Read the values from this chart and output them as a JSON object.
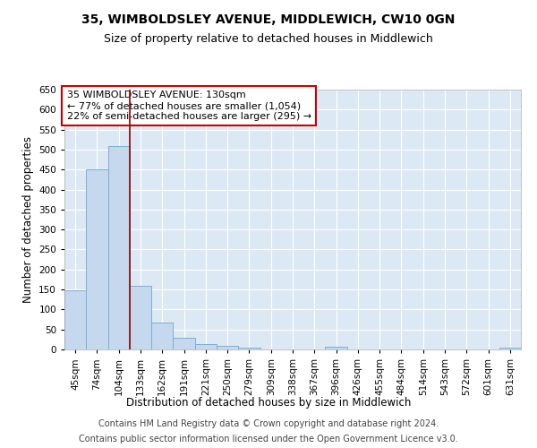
{
  "title": "35, WIMBOLDSLEY AVENUE, MIDDLEWICH, CW10 0GN",
  "subtitle": "Size of property relative to detached houses in Middlewich",
  "xlabel": "Distribution of detached houses by size in Middlewich",
  "ylabel": "Number of detached properties",
  "categories": [
    "45sqm",
    "74sqm",
    "104sqm",
    "133sqm",
    "162sqm",
    "191sqm",
    "221sqm",
    "250sqm",
    "279sqm",
    "309sqm",
    "338sqm",
    "367sqm",
    "396sqm",
    "426sqm",
    "455sqm",
    "484sqm",
    "514sqm",
    "543sqm",
    "572sqm",
    "601sqm",
    "631sqm"
  ],
  "values": [
    148,
    450,
    508,
    160,
    67,
    30,
    13,
    8,
    5,
    0,
    0,
    0,
    6,
    0,
    0,
    0,
    0,
    0,
    0,
    0,
    5
  ],
  "bar_color": "#c5d8ed",
  "bar_edge_color": "#7bafd4",
  "vline_color": "#8b0000",
  "annotation_text": "35 WIMBOLDSLEY AVENUE: 130sqm\n← 77% of detached houses are smaller (1,054)\n22% of semi-detached houses are larger (295) →",
  "annotation_box_facecolor": "#ffffff",
  "annotation_box_edgecolor": "#cc0000",
  "ylim": [
    0,
    650
  ],
  "yticks": [
    0,
    50,
    100,
    150,
    200,
    250,
    300,
    350,
    400,
    450,
    500,
    550,
    600,
    650
  ],
  "plot_background_color": "#dce9f5",
  "grid_color": "#ffffff",
  "footer_line1": "Contains HM Land Registry data © Crown copyright and database right 2024.",
  "footer_line2": "Contains public sector information licensed under the Open Government Licence v3.0.",
  "title_fontsize": 10,
  "subtitle_fontsize": 9,
  "annotation_fontsize": 8,
  "tick_fontsize": 7.5,
  "ylabel_fontsize": 8.5,
  "xlabel_fontsize": 8.5,
  "footer_fontsize": 7
}
